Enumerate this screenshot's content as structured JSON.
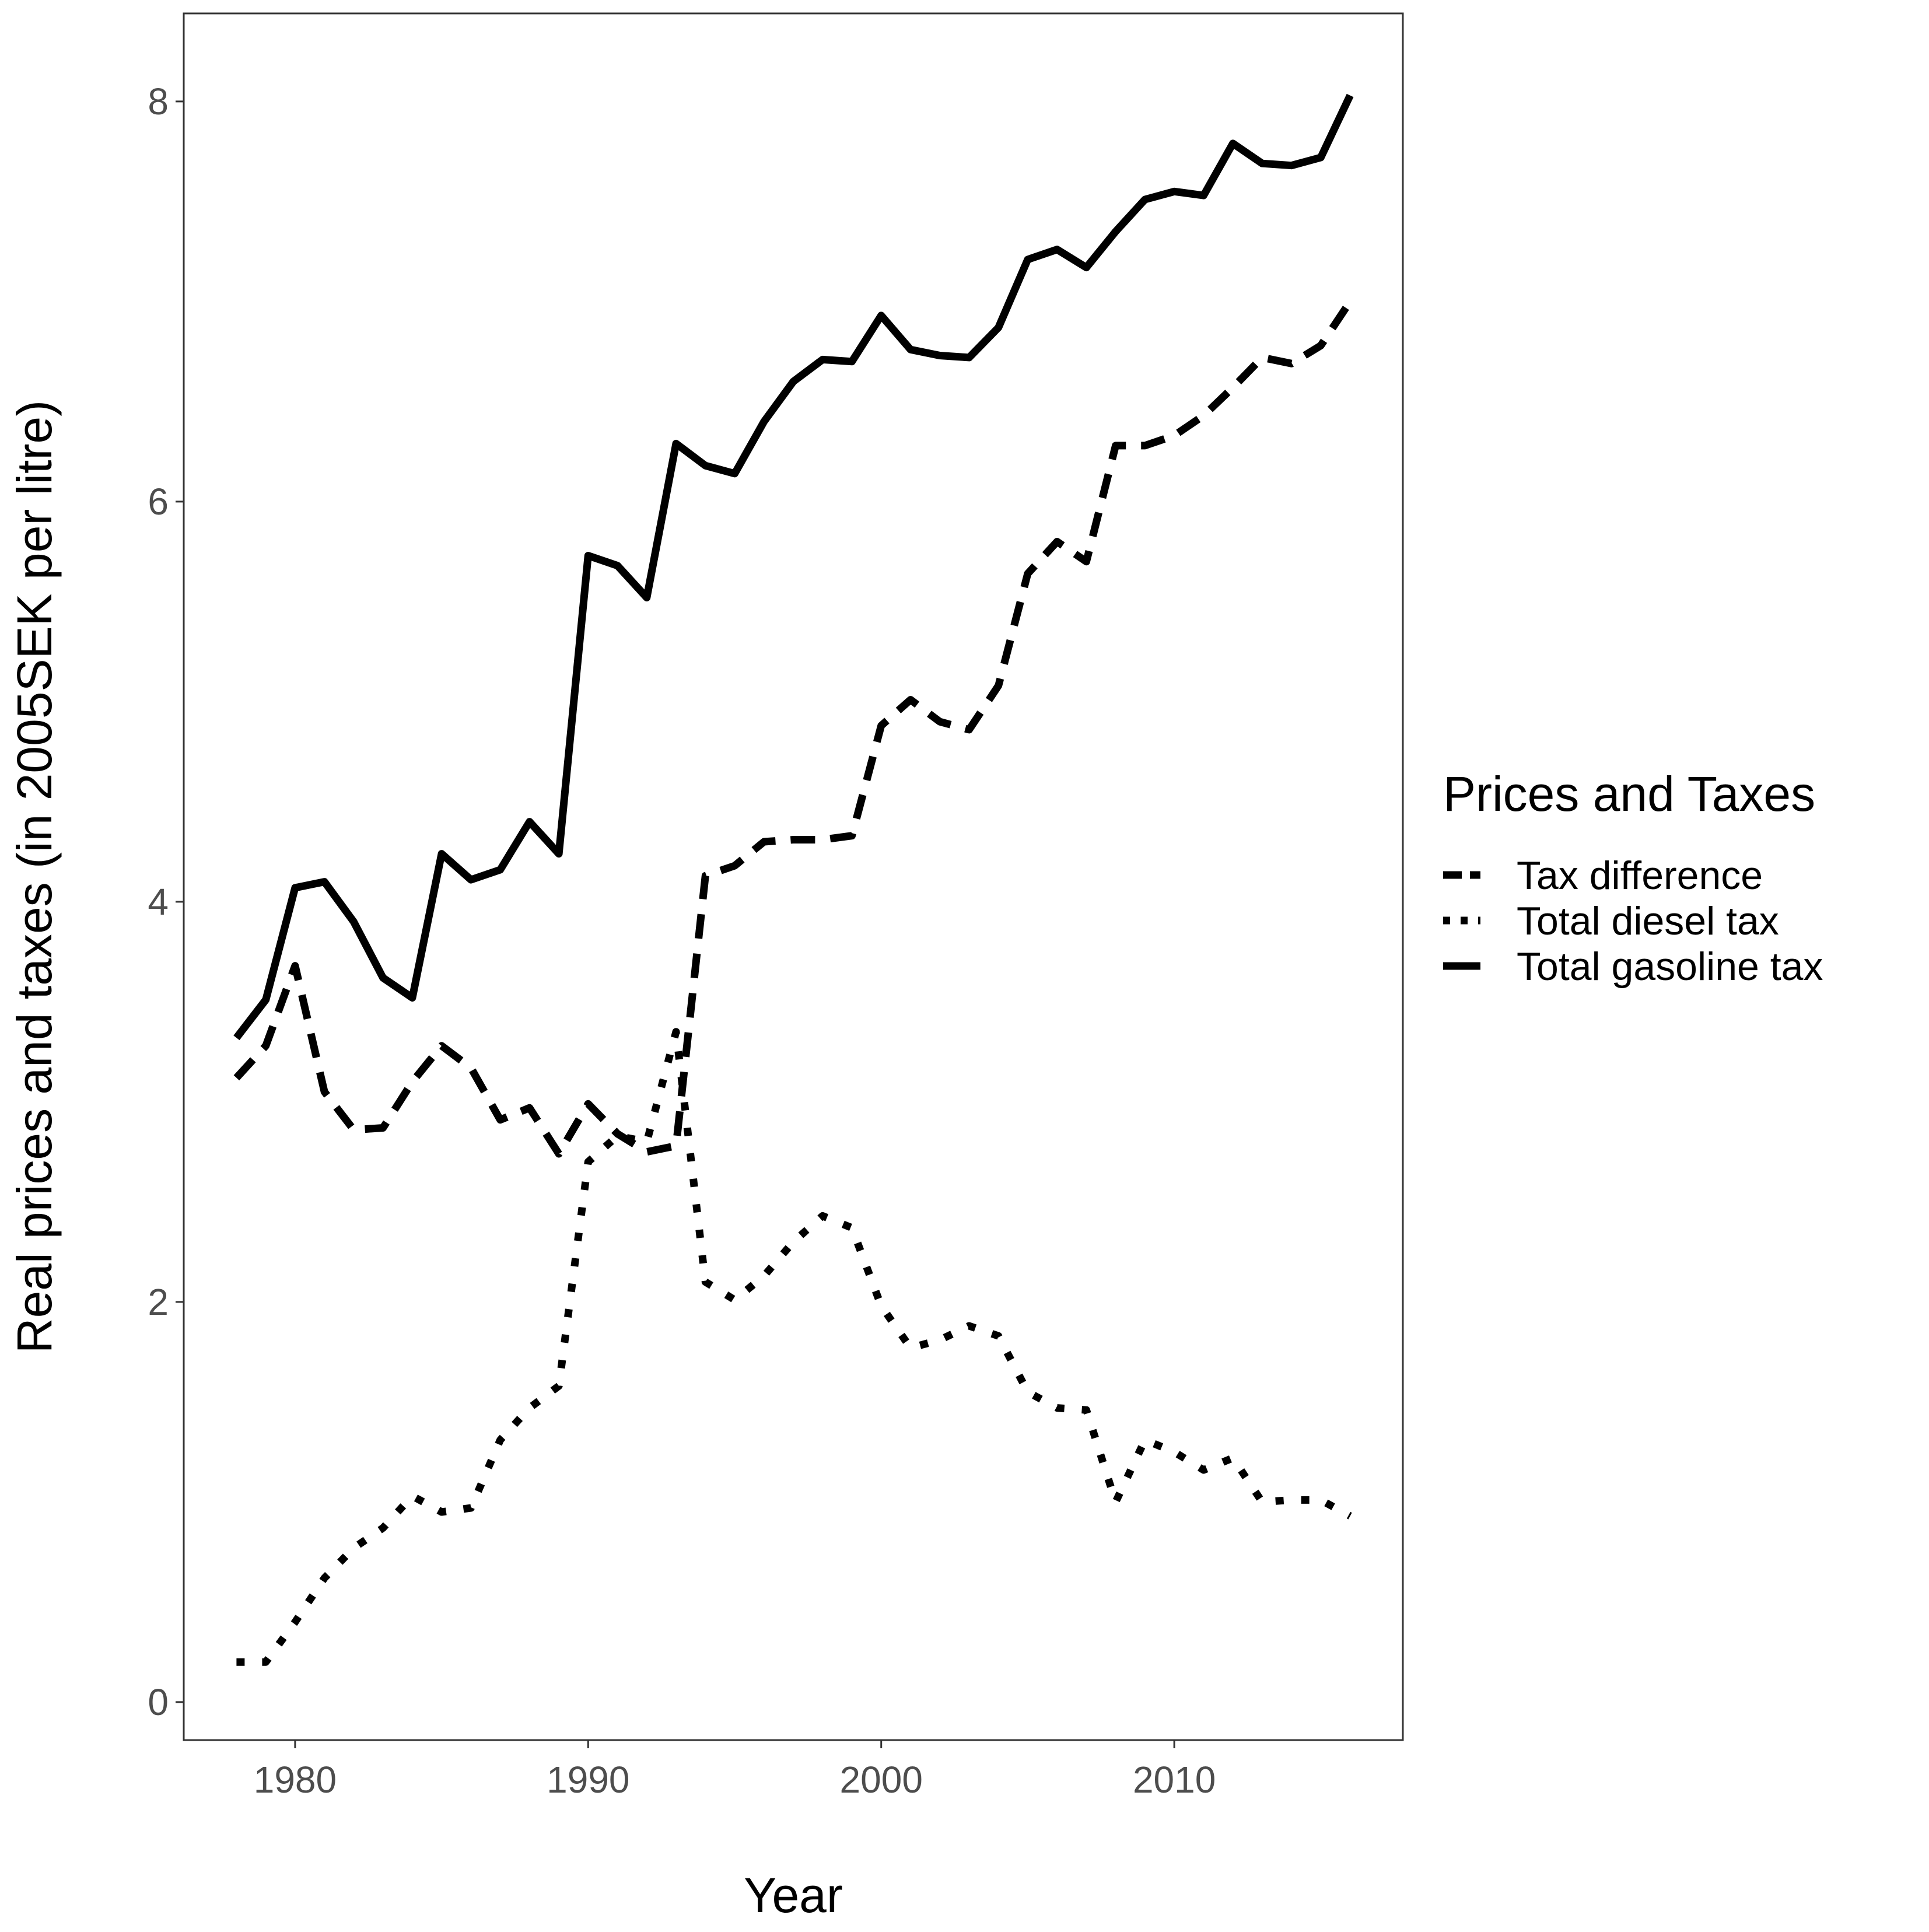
{
  "chart_data": {
    "type": "line",
    "title": "",
    "xlabel": "Year",
    "ylabel": "Real prices and taxes (in 2005SEK per litre)",
    "xlim": [
      1976.2,
      2017.8
    ],
    "ylim": [
      -0.19,
      8.44
    ],
    "x_ticks": [
      1980,
      1990,
      2000,
      2010
    ],
    "y_ticks": [
      0,
      2,
      4,
      6,
      8
    ],
    "x_tick_labels": [
      "1980",
      "1990",
      "2000",
      "2010"
    ],
    "y_tick_labels": [
      "0",
      "2",
      "4",
      "6",
      "8"
    ],
    "grid": false,
    "legend": {
      "title": "Prices and Taxes",
      "placement": "right",
      "entries": [
        "Tax difference",
        "Total diesel tax",
        "Total gasoline tax"
      ]
    },
    "x": [
      1978,
      1979,
      1980,
      1981,
      1982,
      1983,
      1984,
      1985,
      1986,
      1987,
      1988,
      1989,
      1990,
      1991,
      1992,
      1993,
      1994,
      1995,
      1996,
      1997,
      1998,
      1999,
      2000,
      2001,
      2002,
      2003,
      2004,
      2005,
      2006,
      2007,
      2008,
      2009,
      2010,
      2011,
      2012,
      2013,
      2014,
      2015,
      2016
    ],
    "series": [
      {
        "name": "Tax difference",
        "line_style": "dashed",
        "values": [
          3.12,
          3.28,
          3.68,
          3.05,
          2.86,
          2.87,
          3.1,
          3.28,
          3.17,
          2.91,
          2.97,
          2.74,
          2.99,
          2.84,
          2.75,
          2.78,
          4.13,
          4.18,
          4.3,
          4.31,
          4.31,
          4.33,
          4.88,
          5.01,
          4.9,
          4.86,
          5.08,
          5.64,
          5.8,
          5.7,
          6.28,
          6.28,
          6.33,
          6.43,
          6.57,
          6.72,
          6.69,
          6.78,
          7.0
        ]
      },
      {
        "name": "Total diesel tax",
        "line_style": "dotted",
        "values": [
          0.2,
          0.2,
          0.4,
          0.62,
          0.77,
          0.87,
          1.03,
          0.95,
          0.97,
          1.31,
          1.47,
          1.58,
          2.7,
          2.83,
          2.8,
          3.35,
          2.1,
          2.01,
          2.13,
          2.3,
          2.43,
          2.37,
          1.98,
          1.77,
          1.81,
          1.88,
          1.83,
          1.55,
          1.47,
          1.46,
          1.0,
          1.31,
          1.25,
          1.16,
          1.22,
          1.0,
          1.01,
          1.01,
          0.93
        ]
      },
      {
        "name": "Total gasoline tax",
        "line_style": "solid",
        "values": [
          3.32,
          3.51,
          4.07,
          4.1,
          3.9,
          3.62,
          3.52,
          4.24,
          4.11,
          4.16,
          4.4,
          4.24,
          5.73,
          5.68,
          5.52,
          6.29,
          6.18,
          6.14,
          6.4,
          6.6,
          6.71,
          6.7,
          6.93,
          6.76,
          6.73,
          6.72,
          6.87,
          7.21,
          7.26,
          7.17,
          7.35,
          7.51,
          7.55,
          7.53,
          7.79,
          7.69,
          7.68,
          7.72,
          8.03
        ]
      }
    ]
  }
}
